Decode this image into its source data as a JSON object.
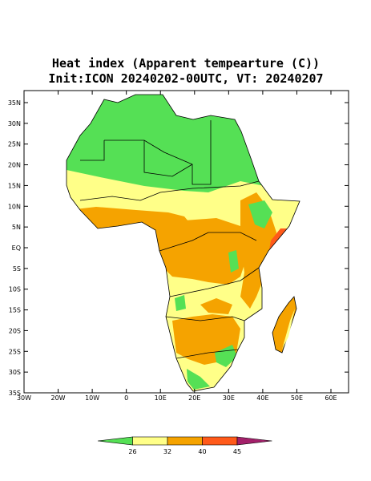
{
  "header": {
    "title": "Heat index (Apparent tempearture (C))",
    "subtitle": "Init:ICON 20240202-00UTC, VT: 20240207"
  },
  "map": {
    "lat_ticks": [
      "35N",
      "30N",
      "25N",
      "20N",
      "15N",
      "10N",
      "5N",
      "EQ",
      "5S",
      "10S",
      "15S",
      "20S",
      "25S",
      "30S",
      "35S"
    ],
    "lon_ticks": [
      "30W",
      "20W",
      "10W",
      "0",
      "10E",
      "20E",
      "30E",
      "40E",
      "50E",
      "60E"
    ]
  },
  "colorbar": {
    "levels": [
      26,
      32,
      40,
      45
    ],
    "colors": [
      "#55e055",
      "#ffff88",
      "#f5a300",
      "#ff5a1a",
      "#a3206a"
    ]
  }
}
